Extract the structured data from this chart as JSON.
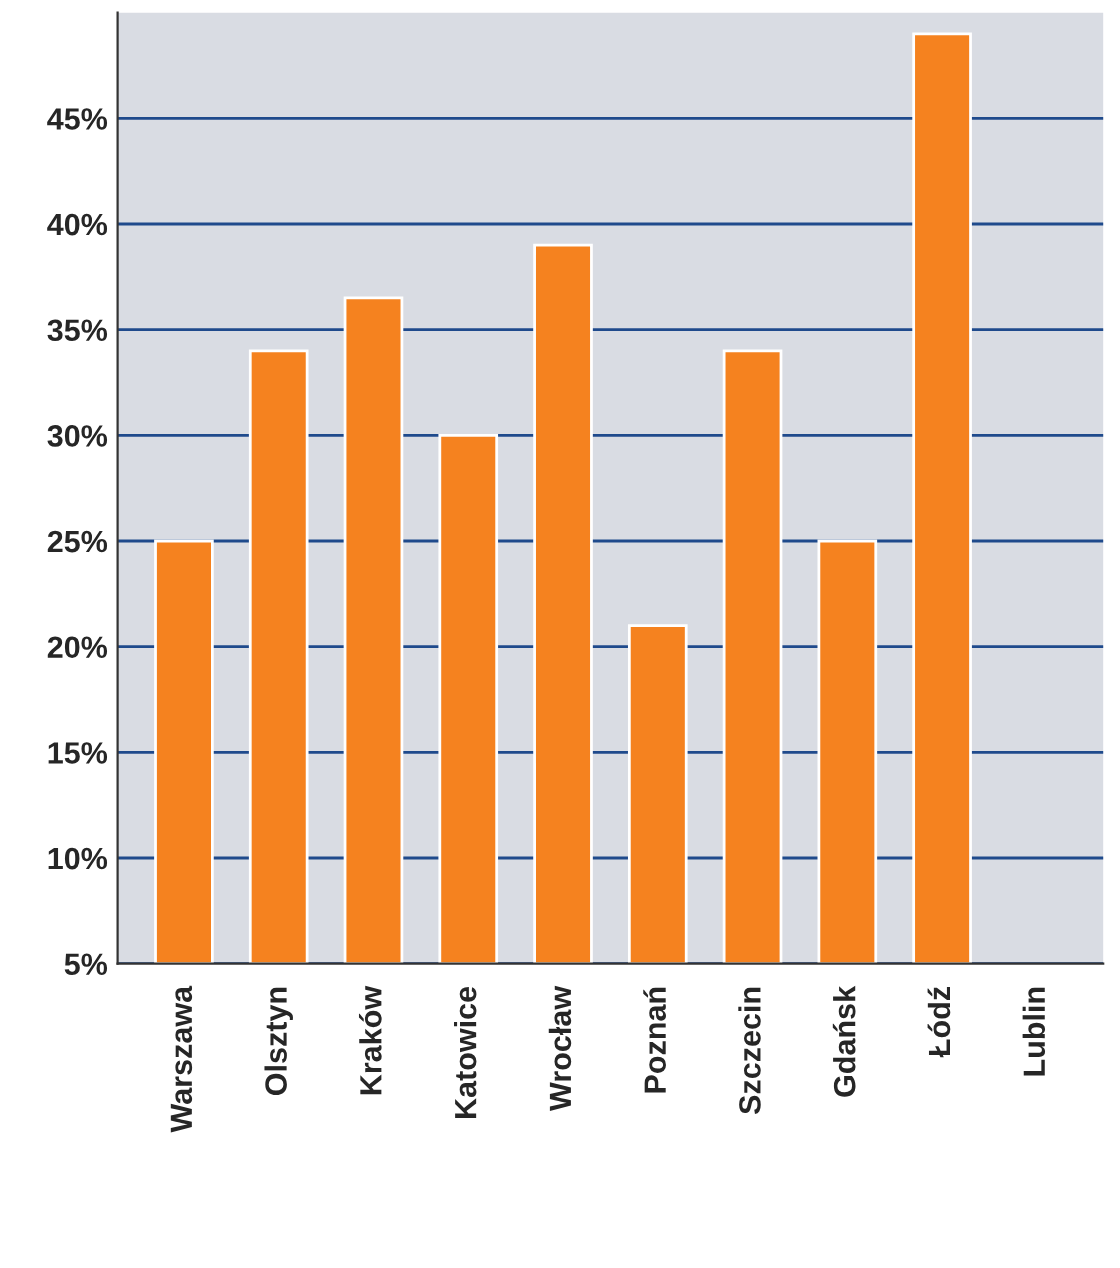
{
  "chart_data": {
    "type": "bar",
    "categories": [
      "Warszawa",
      "Olsztyn",
      "Kraków",
      "Katowice",
      "Wrocław",
      "Poznań",
      "Szczecin",
      "Gdańsk",
      "Łódź",
      "Lublin"
    ],
    "values": [
      25,
      34,
      36.5,
      30,
      39,
      21,
      34,
      25,
      49,
      null
    ],
    "color": "#f5821f",
    "ylim": [
      5,
      50
    ],
    "yticks": [
      {
        "value": 5,
        "label": "5%"
      },
      {
        "value": 10,
        "label": "10%"
      },
      {
        "value": 15,
        "label": "15%"
      },
      {
        "value": 20,
        "label": "20%"
      },
      {
        "value": 25,
        "label": "25%"
      },
      {
        "value": 30,
        "label": "30%"
      },
      {
        "value": 35,
        "label": "35%"
      },
      {
        "value": 40,
        "label": "40%"
      },
      {
        "value": 45,
        "label": "45%"
      }
    ],
    "grid": "y"
  }
}
